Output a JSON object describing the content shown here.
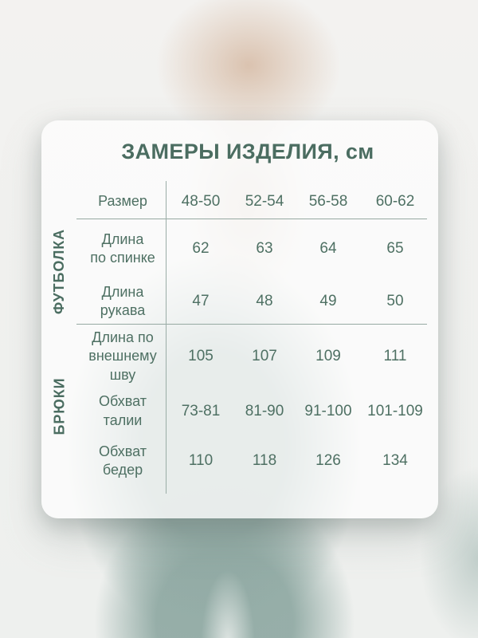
{
  "card": {
    "title": "ЗАМЕРЫ ИЗДЕЛИЯ, см",
    "header": {
      "label": "Размер",
      "sizes": [
        "48-50",
        "52-54",
        "56-58",
        "60-62"
      ]
    },
    "sections": [
      {
        "name": "ФУТБОЛКА",
        "rows": [
          {
            "label": "Длина\nпо спинке",
            "values": [
              "62",
              "63",
              "64",
              "65"
            ]
          },
          {
            "label": "Длина\nрукава",
            "values": [
              "47",
              "48",
              "49",
              "50"
            ]
          }
        ]
      },
      {
        "name": "БРЮКИ",
        "rows": [
          {
            "label": "Длина по\nвнешнему\nшву",
            "values": [
              "105",
              "107",
              "109",
              "111"
            ]
          },
          {
            "label": "Обхват\nталии",
            "values": [
              "73-81",
              "81-90",
              "91-100",
              "101-109"
            ]
          },
          {
            "label": "Обхват\nбедер",
            "values": [
              "110",
              "118",
              "126",
              "134"
            ]
          }
        ]
      }
    ]
  },
  "colors": {
    "accent_text": "#4b6d61",
    "divider": "#96a9a2",
    "card_background": "rgba(253,253,252,0.8)",
    "photo_teal": "#92aba5",
    "photo_tan": "#d9c0ac",
    "page_background": "#f2f1ef"
  },
  "chart_data": {
    "type": "table",
    "title": "ЗАМЕРЫ ИЗДЕЛИЯ, см",
    "units": "см",
    "columns": [
      "Размер",
      "48-50",
      "52-54",
      "56-58",
      "60-62"
    ],
    "row_groups": [
      {
        "group": "ФУТБОЛКА",
        "rows": [
          {
            "label": "Длина по спинке",
            "values": [
              62,
              63,
              64,
              65
            ]
          },
          {
            "label": "Длина рукава",
            "values": [
              47,
              48,
              49,
              50
            ]
          }
        ]
      },
      {
        "group": "БРЮКИ",
        "rows": [
          {
            "label": "Длина по внешнему шву",
            "values": [
              105,
              107,
              109,
              111
            ]
          },
          {
            "label": "Обхват талии",
            "values": [
              "73-81",
              "81-90",
              "91-100",
              "101-109"
            ]
          },
          {
            "label": "Обхват бедер",
            "values": [
              110,
              118,
              126,
              134
            ]
          }
        ]
      }
    ]
  }
}
